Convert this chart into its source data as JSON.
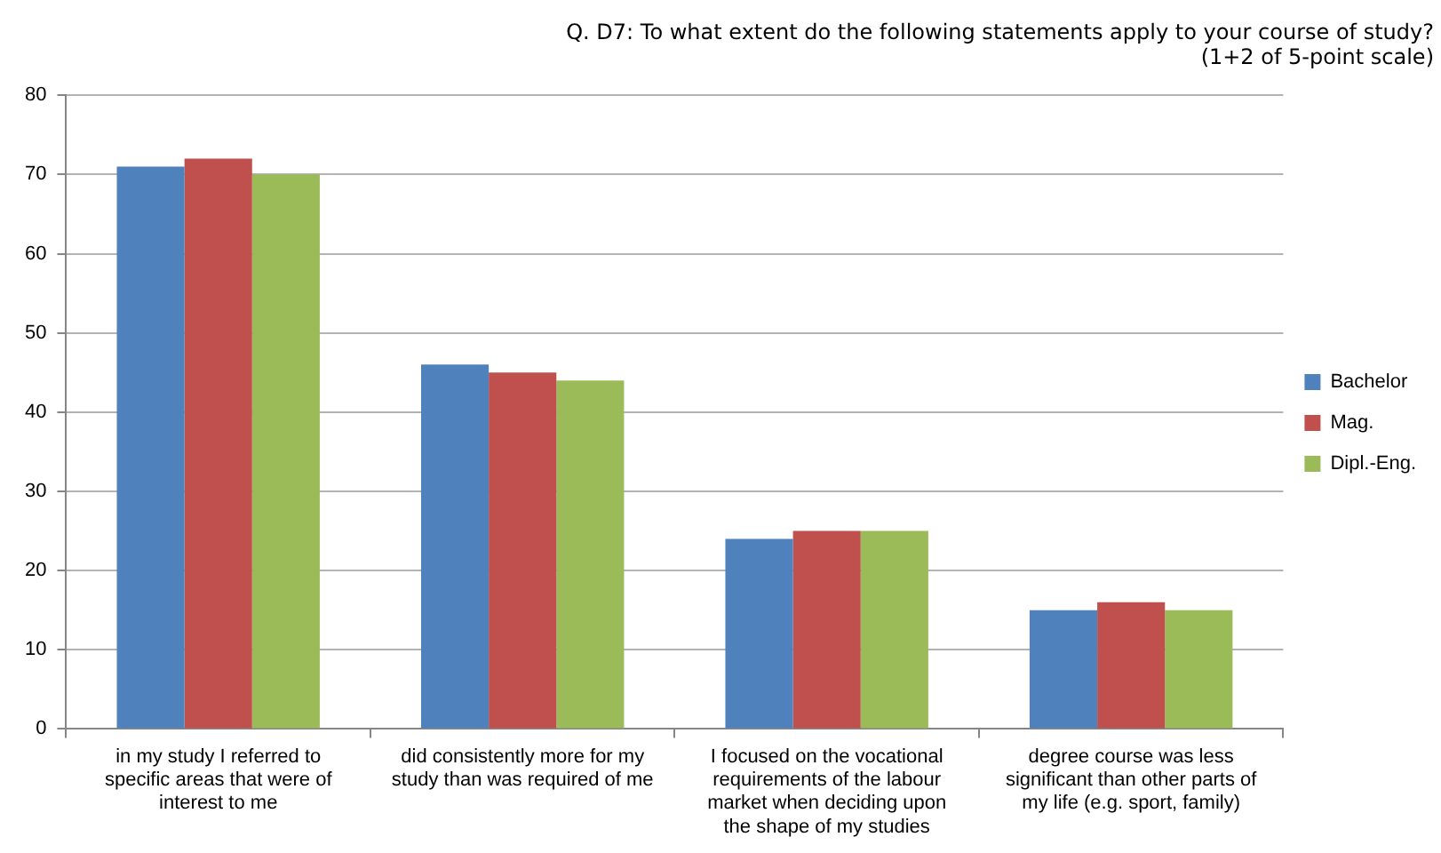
{
  "chart_data": {
    "type": "bar",
    "subtitle": "Q. D7: To what extent do the following statements apply to your course of study?\n(1+2 of 5-point scale)",
    "categories": [
      "in my study I referred to specific areas that were of interest to me",
      "did consistently more for my study than was required of me",
      "I focused on the vocational requirements of the labour market when deciding upon the shape of my studies",
      "degree course was less significant than other parts of my life (e.g. sport, family)"
    ],
    "series": [
      {
        "name": "Bachelor",
        "color": "#4f81bd",
        "values": [
          71,
          46,
          24,
          15
        ]
      },
      {
        "name": "Mag.",
        "color": "#c0504d",
        "values": [
          72,
          45,
          25,
          16
        ]
      },
      {
        "name": "Dipl.-Eng.",
        "color": "#9bbb59",
        "values": [
          70,
          44,
          25,
          15
        ]
      }
    ],
    "ylim": [
      0,
      80
    ],
    "yticks": [
      0,
      10,
      20,
      30,
      40,
      50,
      60,
      70,
      80
    ],
    "grid": "y",
    "legend": "right"
  }
}
